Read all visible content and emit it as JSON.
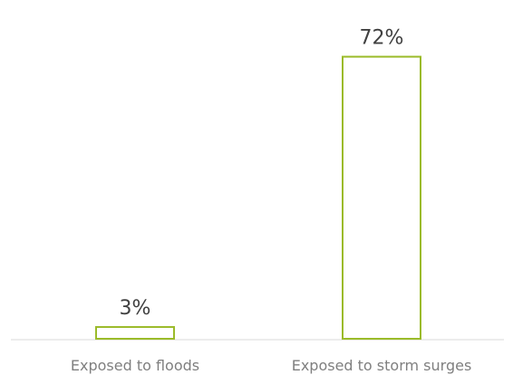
{
  "chart_data": {
    "type": "bar",
    "categories": [
      "Exposed to floods",
      "Exposed to storm surges"
    ],
    "values": [
      3,
      72
    ],
    "data_labels": [
      "3%",
      "72%"
    ],
    "ylim": [
      0,
      80
    ],
    "grid": false,
    "legend": "none",
    "colors": {
      "bar_outline": "#9bbb2a",
      "bar_fill": "#ffffff",
      "data_label_text": "#404040",
      "category_text": "#7f7f7f",
      "axis_line": "#d9d9d9"
    }
  }
}
